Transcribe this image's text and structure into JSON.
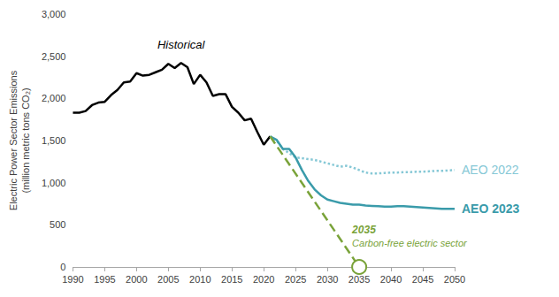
{
  "chart_data": {
    "type": "line",
    "y_label": "Electric Power Sector Emissions\n(million metric tons CO₂)",
    "xlim": [
      1990,
      2050
    ],
    "xticks": [
      1990,
      1995,
      2000,
      2005,
      2010,
      2015,
      2020,
      2025,
      2030,
      2035,
      2040,
      2045,
      2050
    ],
    "ylim": [
      0,
      3000
    ],
    "yticks": [
      0,
      500,
      {
        "value": 1000,
        "label": "1,000"
      },
      {
        "value": 1500,
        "label": "1,500"
      },
      {
        "value": 2000,
        "label": "2,000"
      },
      {
        "value": 2500,
        "label": "2,500"
      },
      {
        "value": 3000,
        "label": "3,000"
      }
    ],
    "grid": false,
    "series": [
      {
        "name": "Historical",
        "color": "#000000",
        "line_style": "solid",
        "x": [
          1990,
          1991,
          1992,
          1993,
          1994,
          1995,
          1996,
          1997,
          1998,
          1999,
          2000,
          2001,
          2002,
          2003,
          2004,
          2005,
          2006,
          2007,
          2008,
          2009,
          2010,
          2011,
          2012,
          2013,
          2014,
          2015,
          2016,
          2017,
          2018,
          2019,
          2020,
          2021
        ],
        "values": [
          1830,
          1830,
          1850,
          1920,
          1950,
          1960,
          2040,
          2100,
          2190,
          2200,
          2300,
          2270,
          2280,
          2310,
          2340,
          2410,
          2360,
          2420,
          2370,
          2170,
          2280,
          2190,
          2030,
          2050,
          2050,
          1900,
          1830,
          1740,
          1760,
          1600,
          1450,
          1550
        ]
      },
      {
        "name": "AEO 2022",
        "color": "#86C8D6",
        "line_style": "dotted",
        "x": [
          2021,
          2022,
          2023,
          2024,
          2025,
          2026,
          2027,
          2028,
          2029,
          2030,
          2031,
          2032,
          2033,
          2034,
          2035,
          2036,
          2037,
          2038,
          2039,
          2040,
          2041,
          2042,
          2043,
          2044,
          2045,
          2046,
          2047,
          2048,
          2049,
          2050
        ],
        "values": [
          1550,
          1500,
          1400,
          1350,
          1300,
          1290,
          1280,
          1270,
          1250,
          1230,
          1210,
          1190,
          1200,
          1180,
          1150,
          1120,
          1110,
          1110,
          1115,
          1120,
          1120,
          1125,
          1125,
          1130,
          1130,
          1135,
          1140,
          1140,
          1145,
          1150
        ]
      },
      {
        "name": "AEO 2023",
        "color": "#3A9BAA",
        "line_style": "solid",
        "x": [
          2021,
          2022,
          2023,
          2024,
          2025,
          2026,
          2027,
          2028,
          2029,
          2030,
          2031,
          2032,
          2033,
          2034,
          2035,
          2036,
          2037,
          2038,
          2039,
          2040,
          2041,
          2042,
          2043,
          2044,
          2045,
          2046,
          2047,
          2048,
          2049,
          2050
        ],
        "values": [
          1550,
          1510,
          1400,
          1400,
          1300,
          1150,
          1020,
          920,
          850,
          800,
          780,
          760,
          750,
          740,
          740,
          730,
          725,
          720,
          715,
          715,
          720,
          720,
          715,
          710,
          705,
          700,
          695,
          690,
          690,
          690
        ]
      },
      {
        "name": "Carbon-free electric sector",
        "color": "#7AA33A",
        "line_style": "dashed",
        "marker": "circle",
        "x": [
          2021,
          2035
        ],
        "values": [
          1550,
          0
        ]
      }
    ]
  }
}
